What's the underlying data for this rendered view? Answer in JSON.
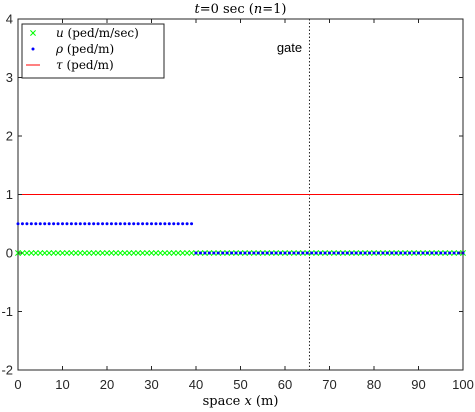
{
  "chart_data": {
    "type": "scatter",
    "title_parts": [
      "t",
      "=0 sec (",
      "n",
      "=1)"
    ],
    "xlabel_parts": [
      "space ",
      "x",
      " (m)"
    ],
    "ylabel": "",
    "xlim": [
      0,
      100
    ],
    "ylim": [
      -2,
      4
    ],
    "xticks": [
      "0",
      "10",
      "20",
      "30",
      "40",
      "50",
      "60",
      "70",
      "80",
      "90",
      "100"
    ],
    "yticks": [
      "-2",
      "-1",
      "0",
      "1",
      "2",
      "3",
      "4"
    ],
    "grid": false,
    "legend_position": "top-left",
    "gate": {
      "x": 65.5,
      "label": "gate"
    },
    "series": [
      {
        "symbol": "u",
        "unit": " (ped/m/sec)",
        "marker": "x",
        "color": "#00ff00",
        "x_start": 0,
        "x_end": 100,
        "x_step": 1,
        "y": 0
      },
      {
        "symbol": "ρ",
        "unit": " (ped/m)",
        "marker": "dot",
        "color": "#0000ff",
        "segments": [
          {
            "x_start": 0,
            "x_end": 39,
            "x_step": 1,
            "y": 0.5
          },
          {
            "x_start": 40,
            "x_end": 100,
            "x_step": 1,
            "y": 0
          }
        ]
      },
      {
        "symbol": "τ",
        "unit": " (ped/m)",
        "marker": "line",
        "color": "#ff0000",
        "x": [
          0,
          100
        ],
        "y": [
          1,
          1
        ]
      }
    ]
  }
}
